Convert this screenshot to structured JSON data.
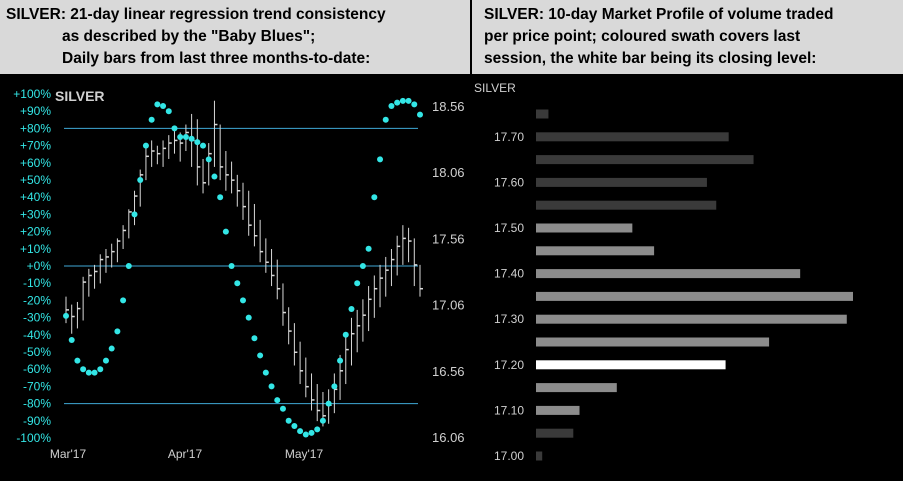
{
  "left_header": {
    "line1": "SILVER:  21-day linear regression trend consistency",
    "line2": "as described by the \"Baby Blues\";",
    "line3": "Daily bars from last three months-to-date:"
  },
  "right_header": {
    "line1": "SILVER:  10-day Market Profile of volume traded",
    "line2": "per price point; coloured swath covers last",
    "line3": "session, the white bar being its closing level:"
  },
  "colors": {
    "cyan": "#33e6e6",
    "bar": "#d9d9d9",
    "grey": "#3a3a3a",
    "light": "#8c8c8c",
    "white": "#ffffff",
    "line": "#3fa9d6"
  },
  "chart_data": [
    {
      "type": "ohlc+scatter",
      "label": "SILVER",
      "x_tick_labels": [
        "Mar'17",
        "Apr'17",
        "May'17"
      ],
      "left_axis": {
        "range": [
          -100,
          100
        ],
        "ticks": [
          "+100%",
          "+90%",
          "+80%",
          "+70%",
          "+60%",
          "+50%",
          "+40%",
          "+30%",
          "+20%",
          "+10%",
          "+0%",
          "-10%",
          "-20%",
          "-30%",
          "-40%",
          "-50%",
          "-60%",
          "-70%",
          "-80%",
          "-90%",
          "-100%"
        ]
      },
      "right_axis": {
        "range": [
          16.06,
          18.56
        ],
        "ticks": [
          "18.56",
          "18.06",
          "17.56",
          "17.06",
          "16.56",
          "16.06"
        ]
      },
      "reference_lines": [
        80,
        0,
        -80
      ],
      "baby_blues": [
        -29,
        -43,
        -55,
        -60,
        -62,
        -62,
        -60,
        -55,
        -48,
        -38,
        -20,
        0,
        30,
        50,
        70,
        85,
        94,
        93,
        90,
        80,
        75,
        75,
        74,
        72,
        70,
        62,
        52,
        40,
        20,
        0,
        -10,
        -20,
        -30,
        -42,
        -52,
        -62,
        -70,
        -78,
        -83,
        -90,
        -93,
        -96,
        -98,
        -97,
        -95,
        -90,
        -80,
        -70,
        -55,
        -40,
        -25,
        -10,
        0,
        10,
        40,
        62,
        85,
        93,
        95,
        96,
        96,
        94,
        88
      ],
      "bars": [
        {
          "h": 17.12,
          "l": 16.92,
          "c": 17.02
        },
        {
          "h": 17.06,
          "l": 16.84,
          "c": 16.97
        },
        {
          "h": 17.08,
          "l": 16.88,
          "c": 17.03
        },
        {
          "h": 17.27,
          "l": 16.94,
          "c": 17.23
        },
        {
          "h": 17.33,
          "l": 17.12,
          "c": 17.28
        },
        {
          "h": 17.36,
          "l": 17.18,
          "c": 17.31
        },
        {
          "h": 17.44,
          "l": 17.22,
          "c": 17.4
        },
        {
          "h": 17.48,
          "l": 17.3,
          "c": 17.42
        },
        {
          "h": 17.52,
          "l": 17.34,
          "c": 17.46
        },
        {
          "h": 17.56,
          "l": 17.38,
          "c": 17.54
        },
        {
          "h": 17.66,
          "l": 17.48,
          "c": 17.62
        },
        {
          "h": 17.78,
          "l": 17.56,
          "c": 17.76
        },
        {
          "h": 17.92,
          "l": 17.66,
          "c": 17.88
        },
        {
          "h": 18.08,
          "l": 17.8,
          "c": 18.04
        },
        {
          "h": 18.26,
          "l": 18.0,
          "c": 18.18
        },
        {
          "h": 18.3,
          "l": 18.1,
          "c": 18.22
        },
        {
          "h": 18.26,
          "l": 18.12,
          "c": 18.2
        },
        {
          "h": 18.3,
          "l": 18.1,
          "c": 18.24
        },
        {
          "h": 18.34,
          "l": 18.16,
          "c": 18.28
        },
        {
          "h": 18.38,
          "l": 18.2,
          "c": 18.3
        },
        {
          "h": 18.36,
          "l": 18.14,
          "c": 18.28
        },
        {
          "h": 18.42,
          "l": 18.22,
          "c": 18.36
        },
        {
          "h": 18.5,
          "l": 18.1,
          "c": 18.3
        },
        {
          "h": 18.46,
          "l": 17.96,
          "c": 18.1
        },
        {
          "h": 18.16,
          "l": 17.9,
          "c": 17.98
        },
        {
          "h": 18.28,
          "l": 17.96,
          "c": 18.2
        },
        {
          "h": 18.6,
          "l": 18.1,
          "c": 18.42
        },
        {
          "h": 18.42,
          "l": 18.0,
          "c": 18.1
        },
        {
          "h": 18.22,
          "l": 17.92,
          "c": 18.04
        },
        {
          "h": 18.14,
          "l": 17.9,
          "c": 18.0
        },
        {
          "h": 18.04,
          "l": 17.8,
          "c": 17.92
        },
        {
          "h": 17.98,
          "l": 17.7,
          "c": 17.8
        },
        {
          "h": 17.92,
          "l": 17.58,
          "c": 17.66
        },
        {
          "h": 17.82,
          "l": 17.5,
          "c": 17.58
        },
        {
          "h": 17.7,
          "l": 17.38,
          "c": 17.46
        },
        {
          "h": 17.56,
          "l": 17.3,
          "c": 17.38
        },
        {
          "h": 17.48,
          "l": 17.2,
          "c": 17.28
        },
        {
          "h": 17.4,
          "l": 17.1,
          "c": 17.18
        },
        {
          "h": 17.22,
          "l": 16.9,
          "c": 17.0
        },
        {
          "h": 17.04,
          "l": 16.76,
          "c": 16.86
        },
        {
          "h": 16.92,
          "l": 16.6,
          "c": 16.7
        },
        {
          "h": 16.78,
          "l": 16.46,
          "c": 16.56
        },
        {
          "h": 16.66,
          "l": 16.36,
          "c": 16.44
        },
        {
          "h": 16.54,
          "l": 16.26,
          "c": 16.34
        },
        {
          "h": 16.46,
          "l": 16.18,
          "c": 16.26
        },
        {
          "h": 16.4,
          "l": 16.14,
          "c": 16.22
        },
        {
          "h": 16.42,
          "l": 16.16,
          "c": 16.3
        },
        {
          "h": 16.54,
          "l": 16.24,
          "c": 16.42
        },
        {
          "h": 16.68,
          "l": 16.34,
          "c": 16.56
        },
        {
          "h": 16.84,
          "l": 16.46,
          "c": 16.72
        },
        {
          "h": 16.96,
          "l": 16.6,
          "c": 16.84
        },
        {
          "h": 17.02,
          "l": 16.7,
          "c": 16.9
        },
        {
          "h": 17.1,
          "l": 16.78,
          "c": 16.98
        },
        {
          "h": 17.2,
          "l": 16.86,
          "c": 17.1
        },
        {
          "h": 17.28,
          "l": 16.96,
          "c": 17.18
        },
        {
          "h": 17.36,
          "l": 17.04,
          "c": 17.26
        },
        {
          "h": 17.42,
          "l": 17.12,
          "c": 17.32
        },
        {
          "h": 17.48,
          "l": 17.2,
          "c": 17.4
        },
        {
          "h": 17.58,
          "l": 17.28,
          "c": 17.5
        },
        {
          "h": 17.66,
          "l": 17.36,
          "c": 17.56
        },
        {
          "h": 17.64,
          "l": 17.38,
          "c": 17.54
        },
        {
          "h": 17.56,
          "l": 17.2,
          "c": 17.36
        },
        {
          "h": 17.36,
          "l": 17.12,
          "c": 17.18
        }
      ]
    },
    {
      "type": "bar",
      "orientation": "horizontal",
      "label": "SILVER",
      "ylabels": [
        "17.70",
        "17.60",
        "17.50",
        "17.40",
        "17.30",
        "17.20",
        "17.10",
        "17.00"
      ],
      "levels": [
        17.75,
        17.7,
        17.65,
        17.6,
        17.55,
        17.5,
        17.45,
        17.4,
        17.35,
        17.3,
        17.25,
        17.2,
        17.15,
        17.1,
        17.05,
        17.0
      ],
      "values": [
        4,
        62,
        70,
        55,
        58,
        31,
        38,
        85,
        102,
        100,
        75,
        61,
        26,
        14,
        12,
        2
      ],
      "swath_range": [
        17.1,
        17.5
      ],
      "close_level": 17.2
    }
  ]
}
